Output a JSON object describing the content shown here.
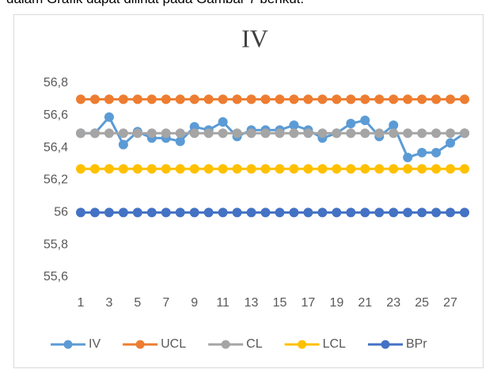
{
  "caption": "dalam Grafik dapat dilihat pada Gambar 7 berikut.",
  "chart_data": {
    "type": "line",
    "title": "IV",
    "categories": [
      1,
      null,
      3,
      null,
      5,
      null,
      7,
      null,
      9,
      null,
      11,
      null,
      13,
      null,
      15,
      null,
      17,
      null,
      19,
      null,
      21,
      null,
      23,
      null,
      25,
      null,
      27,
      null
    ],
    "series": [
      {
        "name": "IV",
        "color": "#5b9bd5",
        "values": [
          56.49,
          56.49,
          56.59,
          56.42,
          56.5,
          56.46,
          56.46,
          56.44,
          56.53,
          56.51,
          56.56,
          56.47,
          56.51,
          56.51,
          56.51,
          56.54,
          56.51,
          56.46,
          56.49,
          56.55,
          56.57,
          56.47,
          56.54,
          56.34,
          56.37,
          56.37,
          56.43,
          56.49
        ]
      },
      {
        "name": "UCL",
        "color": "#ed7d31",
        "values": [
          56.7,
          56.7,
          56.7,
          56.7,
          56.7,
          56.7,
          56.7,
          56.7,
          56.7,
          56.7,
          56.7,
          56.7,
          56.7,
          56.7,
          56.7,
          56.7,
          56.7,
          56.7,
          56.7,
          56.7,
          56.7,
          56.7,
          56.7,
          56.7,
          56.7,
          56.7,
          56.7,
          56.7
        ]
      },
      {
        "name": "CL",
        "color": "#a5a5a5",
        "values": [
          56.49,
          56.49,
          56.49,
          56.49,
          56.49,
          56.49,
          56.49,
          56.49,
          56.49,
          56.49,
          56.49,
          56.49,
          56.49,
          56.49,
          56.49,
          56.49,
          56.49,
          56.49,
          56.49,
          56.49,
          56.49,
          56.49,
          56.49,
          56.49,
          56.49,
          56.49,
          56.49,
          56.49
        ]
      },
      {
        "name": "LCL",
        "color": "#ffc000",
        "values": [
          56.27,
          56.27,
          56.27,
          56.27,
          56.27,
          56.27,
          56.27,
          56.27,
          56.27,
          56.27,
          56.27,
          56.27,
          56.27,
          56.27,
          56.27,
          56.27,
          56.27,
          56.27,
          56.27,
          56.27,
          56.27,
          56.27,
          56.27,
          56.27,
          56.27,
          56.27,
          56.27,
          56.27
        ]
      },
      {
        "name": "BPr",
        "color": "#4472c4",
        "values": [
          56,
          56,
          56,
          56,
          56,
          56,
          56,
          56,
          56,
          56,
          56,
          56,
          56,
          56,
          56,
          56,
          56,
          56,
          56,
          56,
          56,
          56,
          56,
          56,
          56,
          56,
          56,
          56
        ]
      }
    ],
    "ylim": [
      55.6,
      56.8
    ],
    "yticks": [
      {
        "value": 55.6,
        "label": "55,6"
      },
      {
        "value": 55.8,
        "label": "55,8"
      },
      56,
      {
        "value": 56.2,
        "label": "56,2"
      },
      {
        "value": 56.4,
        "label": "56,4"
      },
      {
        "value": 56.6,
        "label": "56,6"
      },
      {
        "value": 56.8,
        "label": "56,8"
      }
    ],
    "grid": false,
    "legend": "bottom"
  }
}
